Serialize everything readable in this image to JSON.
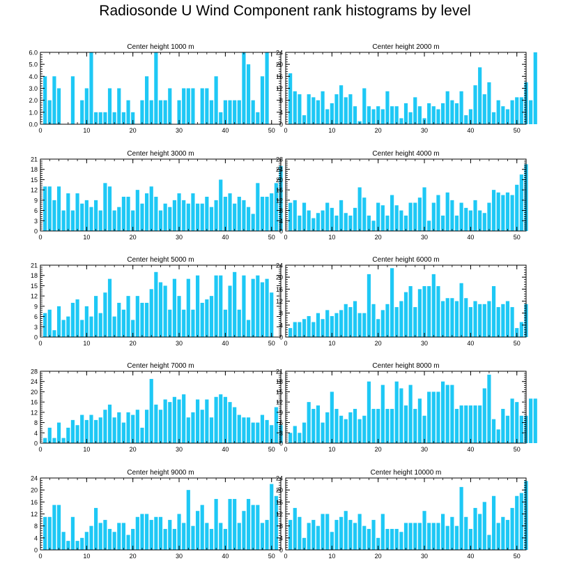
{
  "title": "Radiosonde U Wind Component rank histograms by level",
  "bar_color": "#1EC8F5",
  "chart_data": [
    {
      "type": "bar",
      "title": "Center height 1000 m",
      "ylim": [
        0,
        6
      ],
      "yticks": [
        0,
        1,
        2,
        3,
        4,
        5,
        6
      ],
      "ytick_labels": [
        "0.0",
        "1.0",
        "2.0",
        "3.0",
        "4.0",
        "5.0",
        "6.0"
      ],
      "xlim": [
        0,
        52
      ],
      "xticks": [
        0,
        10,
        20,
        30,
        40,
        50
      ],
      "values": [
        4,
        2,
        4,
        3,
        0,
        0,
        4,
        0,
        2,
        3,
        6,
        1,
        1,
        1,
        3,
        1,
        3,
        1,
        2,
        1,
        0,
        2,
        4,
        2,
        6,
        2,
        2,
        3,
        0,
        2,
        3,
        3,
        3,
        0,
        3,
        3,
        2,
        4,
        1,
        2,
        2,
        2,
        2,
        6,
        5,
        2,
        1,
        4,
        6
      ]
    },
    {
      "type": "bar",
      "title": "Center height 2000 m",
      "ylim": [
        0,
        24
      ],
      "yticks": [
        0,
        4,
        8,
        12,
        16,
        20,
        24
      ],
      "ytick_labels": [
        "0",
        "4",
        "8",
        "12",
        "16",
        "20",
        "24"
      ],
      "xlim": [
        0,
        52
      ],
      "xticks": [
        0,
        10,
        20,
        30,
        40,
        50
      ],
      "values": [
        17,
        11,
        10,
        3,
        10,
        9,
        8,
        11,
        5,
        7,
        10,
        13,
        9,
        10,
        6,
        1,
        12,
        6,
        5,
        6,
        5,
        11,
        6,
        6,
        2,
        7,
        4,
        9,
        6,
        2,
        7,
        6,
        5,
        7,
        11,
        8,
        7,
        11,
        3,
        5,
        13,
        19,
        10,
        14,
        4,
        8,
        6,
        5,
        8,
        9,
        9,
        14,
        8,
        24
      ]
    },
    {
      "type": "bar",
      "title": "Center height 3000 m",
      "ylim": [
        0,
        21
      ],
      "yticks": [
        0,
        3,
        6,
        9,
        12,
        15,
        18,
        21
      ],
      "ytick_labels": [
        "0",
        "3",
        "6",
        "9",
        "12",
        "15",
        "18",
        "21"
      ],
      "xlim": [
        0,
        52
      ],
      "xticks": [
        0,
        10,
        20,
        30,
        40,
        50
      ],
      "values": [
        13,
        13,
        9,
        13,
        6,
        11,
        6,
        11,
        8,
        9,
        7,
        9,
        6,
        14,
        13,
        6,
        7,
        10,
        10,
        6,
        12,
        8,
        11,
        13,
        10,
        6,
        8,
        7,
        9,
        11,
        9,
        8,
        11,
        8,
        8,
        10,
        7,
        9,
        15,
        10,
        11,
        8,
        10,
        9,
        7,
        5,
        14,
        10,
        10,
        11,
        14,
        19
      ]
    },
    {
      "type": "bar",
      "title": "Center height 4000 m",
      "ylim": [
        0,
        28
      ],
      "yticks": [
        0,
        4,
        8,
        12,
        16,
        20,
        24,
        28
      ],
      "ytick_labels": [
        "0",
        "4",
        "8",
        "12",
        "16",
        "20",
        "24",
        "28"
      ],
      "xlim": [
        0,
        52
      ],
      "xticks": [
        0,
        10,
        20,
        30,
        40,
        50
      ],
      "values": [
        11,
        12,
        6,
        11,
        8,
        5,
        7,
        8,
        11,
        9,
        6,
        12,
        7,
        6,
        9,
        17,
        13,
        6,
        4,
        11,
        10,
        6,
        14,
        10,
        8,
        6,
        11,
        11,
        13,
        17,
        4,
        11,
        14,
        6,
        15,
        12,
        6,
        11,
        9,
        8,
        12,
        8,
        7,
        11,
        16,
        15,
        14,
        15,
        14,
        18,
        22,
        26
      ]
    },
    {
      "type": "bar",
      "title": "Center height 5000 m",
      "ylim": [
        0,
        21
      ],
      "yticks": [
        0,
        3,
        6,
        9,
        12,
        15,
        18,
        21
      ],
      "ytick_labels": [
        "0",
        "3",
        "6",
        "9",
        "12",
        "15",
        "18",
        "21"
      ],
      "xlim": [
        0,
        52
      ],
      "xticks": [
        0,
        10,
        20,
        30,
        40,
        50
      ],
      "values": [
        7,
        8,
        2,
        9,
        5,
        6,
        10,
        11,
        5,
        9,
        6,
        12,
        7,
        13,
        17,
        6,
        10,
        8,
        12,
        5,
        12,
        10,
        10,
        14,
        19,
        16,
        15,
        8,
        17,
        12,
        8,
        17,
        8,
        18,
        10,
        11,
        12,
        18,
        18,
        8,
        15,
        19,
        8,
        18,
        5,
        17,
        18,
        16,
        17,
        13
      ]
    },
    {
      "type": "bar",
      "title": "Center height 6000 m",
      "ylim": [
        0,
        24
      ],
      "yticks": [
        0,
        4,
        8,
        12,
        16,
        20,
        24
      ],
      "ytick_labels": [
        "0",
        "4",
        "8",
        "12",
        "16",
        "20",
        "24"
      ],
      "xlim": [
        0,
        52
      ],
      "xticks": [
        0,
        10,
        20,
        30,
        40,
        50
      ],
      "values": [
        3,
        5,
        5,
        6,
        7,
        5,
        8,
        6,
        9,
        7,
        8,
        9,
        11,
        10,
        12,
        8,
        8,
        21,
        11,
        6,
        9,
        11,
        23,
        10,
        12,
        15,
        17,
        10,
        16,
        17,
        17,
        21,
        17,
        12,
        13,
        13,
        12,
        18,
        13,
        10,
        12,
        11,
        11,
        12,
        17,
        10,
        11,
        12,
        10,
        3,
        5,
        11
      ]
    },
    {
      "type": "bar",
      "title": "Center height 7000 m",
      "ylim": [
        0,
        28
      ],
      "yticks": [
        0,
        4,
        8,
        12,
        16,
        20,
        24,
        28
      ],
      "ytick_labels": [
        "0",
        "4",
        "8",
        "12",
        "16",
        "20",
        "24",
        "28"
      ],
      "xlim": [
        0,
        52
      ],
      "xticks": [
        0,
        10,
        20,
        30,
        40,
        50
      ],
      "values": [
        2,
        6,
        2,
        8,
        2,
        6,
        9,
        7,
        11,
        9,
        11,
        9,
        10,
        13,
        15,
        10,
        12,
        8,
        12,
        11,
        13,
        6,
        13,
        25,
        15,
        13,
        17,
        16,
        18,
        17,
        19,
        10,
        12,
        17,
        13,
        17,
        10,
        18,
        19,
        18,
        16,
        14,
        11,
        10,
        10,
        8,
        8,
        11,
        9,
        7,
        14,
        7
      ]
    },
    {
      "type": "bar",
      "title": "Center height 8000 m",
      "ylim": [
        0,
        21
      ],
      "yticks": [
        0,
        3,
        6,
        9,
        12,
        15,
        18,
        21
      ],
      "ytick_labels": [
        "0",
        "3",
        "6",
        "9",
        "12",
        "15",
        "18",
        "21"
      ],
      "xlim": [
        0,
        52
      ],
      "xticks": [
        0,
        10,
        20,
        30,
        40,
        50
      ],
      "values": [
        3,
        5,
        3,
        6,
        12,
        10,
        11,
        6,
        9,
        15,
        10,
        8,
        7,
        9,
        10,
        7,
        8,
        18,
        10,
        10,
        17,
        10,
        10,
        18,
        16,
        11,
        17,
        10,
        13,
        8,
        15,
        15,
        15,
        18,
        17,
        17,
        10,
        11,
        11,
        11,
        11,
        11,
        16,
        20,
        7,
        4,
        10,
        8,
        13,
        12,
        8,
        8,
        13,
        13
      ]
    },
    {
      "type": "bar",
      "title": "Center height 9000 m",
      "ylim": [
        0,
        24
      ],
      "yticks": [
        0,
        4,
        8,
        12,
        16,
        20,
        24
      ],
      "ytick_labels": [
        "0",
        "4",
        "8",
        "12",
        "16",
        "20",
        "24"
      ],
      "xlim": [
        0,
        52
      ],
      "xticks": [
        0,
        10,
        20,
        30,
        40,
        50
      ],
      "values": [
        11,
        11,
        15,
        15,
        6,
        3,
        11,
        3,
        4,
        6,
        8,
        14,
        9,
        10,
        7,
        6,
        9,
        9,
        5,
        7,
        11,
        12,
        12,
        10,
        11,
        11,
        7,
        10,
        7,
        12,
        9,
        20,
        8,
        13,
        15,
        9,
        7,
        17,
        9,
        7,
        17,
        17,
        9,
        13,
        17,
        15,
        15,
        9,
        10,
        22,
        18
      ]
    },
    {
      "type": "bar",
      "title": "Center height 10000 m",
      "ylim": [
        0,
        24
      ],
      "yticks": [
        0,
        4,
        8,
        12,
        16,
        20,
        24
      ],
      "ytick_labels": [
        "0",
        "4",
        "8",
        "12",
        "16",
        "20",
        "24"
      ],
      "xlim": [
        0,
        52
      ],
      "xticks": [
        0,
        10,
        20,
        30,
        40,
        50
      ],
      "values": [
        10,
        14,
        11,
        4,
        9,
        10,
        8,
        12,
        12,
        6,
        10,
        11,
        13,
        10,
        9,
        12,
        8,
        7,
        10,
        4,
        12,
        7,
        7,
        7,
        6,
        9,
        9,
        9,
        9,
        13,
        9,
        9,
        9,
        12,
        8,
        11,
        8,
        21,
        11,
        7,
        14,
        12,
        16,
        5,
        18,
        9,
        11,
        10,
        14,
        18,
        19,
        23
      ]
    }
  ]
}
